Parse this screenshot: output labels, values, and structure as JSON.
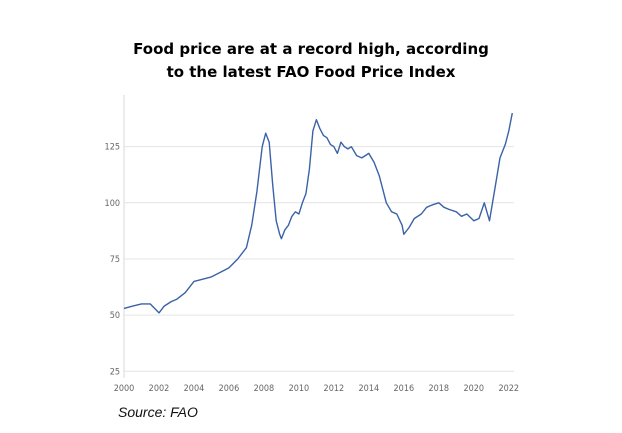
{
  "title_line1": "Food price are at a record high, according",
  "title_line2": "to the latest FAO Food Price Index",
  "source": "Source: FAO",
  "chart_data": {
    "type": "line",
    "title": "Food price are at a record high, according to the latest FAO Food Price Index",
    "xlabel": "",
    "ylabel": "",
    "xlim": [
      2000,
      2022.3
    ],
    "ylim": [
      22,
      148
    ],
    "grid": true,
    "line_color": "#3a62a7",
    "y_ticks": [
      25,
      50,
      75,
      100,
      125
    ],
    "x_ticks": [
      "2000",
      "2002",
      "2004",
      "2006",
      "2008",
      "2010",
      "2012",
      "2014",
      "2016",
      "2018",
      "2020",
      "2022"
    ],
    "series": [
      {
        "name": "",
        "x": [
          2000.0,
          2000.5,
          2001.0,
          2001.5,
          2002.0,
          2002.3,
          2002.7,
          2003.0,
          2003.5,
          2004.0,
          2004.5,
          2005.0,
          2005.5,
          2006.0,
          2006.5,
          2007.0,
          2007.3,
          2007.6,
          2007.9,
          2008.1,
          2008.3,
          2008.5,
          2008.7,
          2008.9,
          2009.0,
          2009.2,
          2009.4,
          2009.6,
          2009.8,
          2010.0,
          2010.2,
          2010.4,
          2010.6,
          2010.8,
          2011.0,
          2011.2,
          2011.4,
          2011.6,
          2011.8,
          2012.0,
          2012.2,
          2012.4,
          2012.6,
          2012.8,
          2013.0,
          2013.3,
          2013.6,
          2014.0,
          2014.3,
          2014.6,
          2015.0,
          2015.3,
          2015.6,
          2015.9,
          2016.0,
          2016.3,
          2016.6,
          2017.0,
          2017.3,
          2017.6,
          2018.0,
          2018.3,
          2018.6,
          2019.0,
          2019.3,
          2019.6,
          2020.0,
          2020.3,
          2020.6,
          2020.9,
          2021.2,
          2021.5,
          2021.8,
          2022.0,
          2022.2
        ],
        "values": [
          53,
          54,
          55,
          55,
          51,
          54,
          56,
          57,
          60,
          65,
          66,
          67,
          69,
          71,
          75,
          80,
          90,
          105,
          125,
          131,
          127,
          108,
          92,
          86,
          84,
          88,
          90,
          94,
          96,
          95,
          100,
          104,
          115,
          132,
          137,
          133,
          130,
          129,
          126,
          125,
          122,
          127,
          125,
          124,
          125,
          121,
          120,
          122,
          118,
          112,
          100,
          96,
          95,
          90,
          86,
          89,
          93,
          95,
          98,
          99,
          100,
          98,
          97,
          96,
          94,
          95,
          92,
          93,
          100,
          92,
          106,
          120,
          126,
          132,
          140
        ]
      }
    ]
  }
}
